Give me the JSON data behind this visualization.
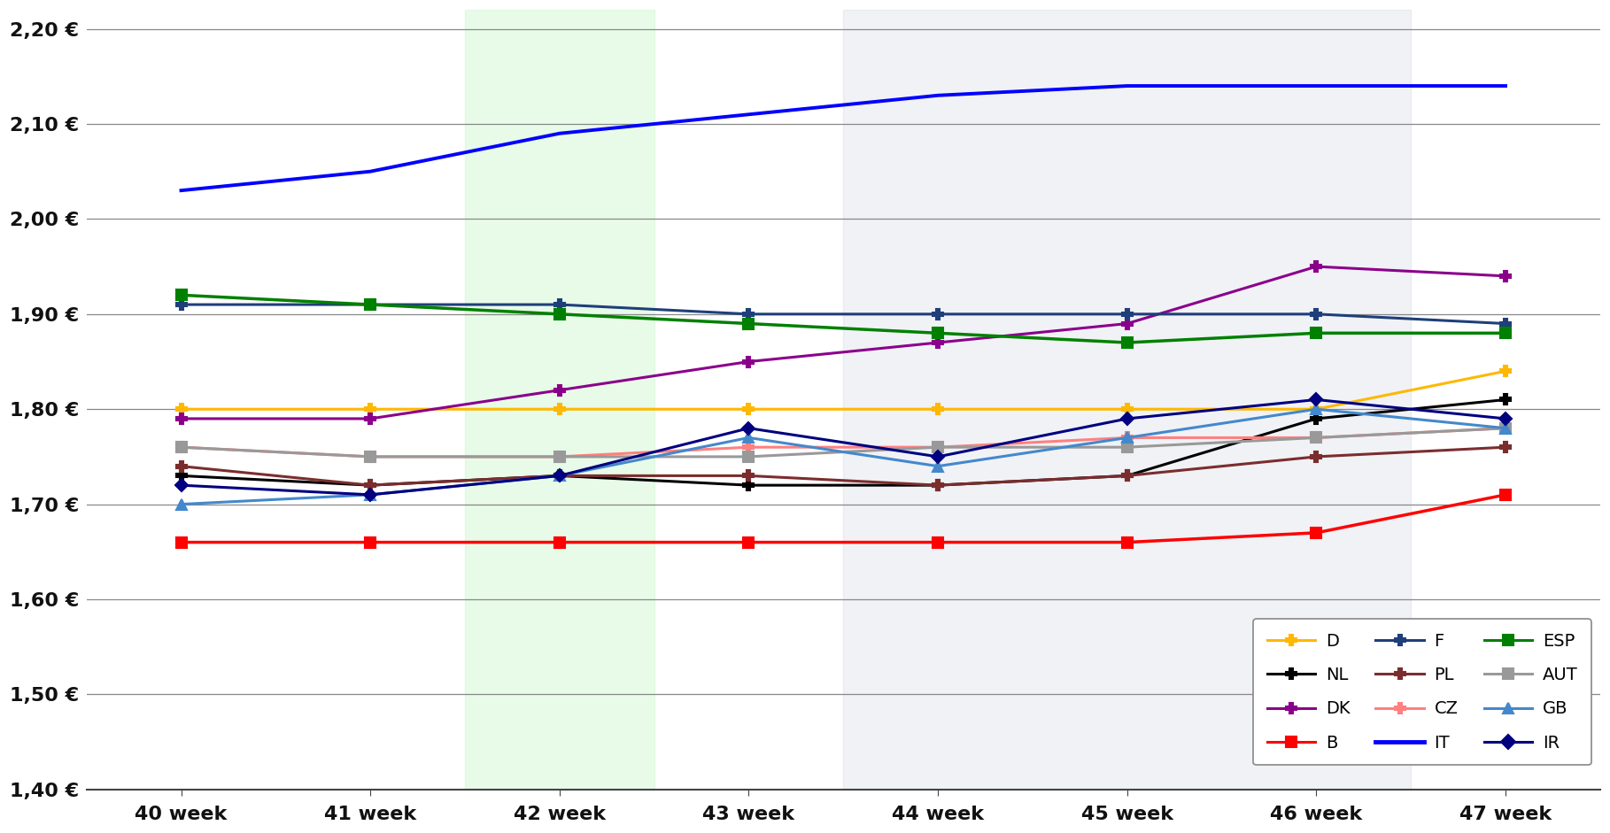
{
  "weeks": [
    40,
    41,
    42,
    43,
    44,
    45,
    46,
    47
  ],
  "week_labels": [
    "40 week",
    "41 week",
    "42 week",
    "43 week",
    "44 week",
    "45 week",
    "46 week",
    "47 week"
  ],
  "series": {
    "D": {
      "values": [
        1.8,
        1.8,
        1.8,
        1.8,
        1.8,
        1.8,
        1.8,
        1.84
      ],
      "color": "#FFB800",
      "marker": "P",
      "linewidth": 2.2,
      "markersize": 8
    },
    "NL": {
      "values": [
        1.73,
        1.72,
        1.73,
        1.72,
        1.72,
        1.73,
        1.79,
        1.81
      ],
      "color": "#000000",
      "marker": "P",
      "linewidth": 2.2,
      "markersize": 8
    },
    "DK": {
      "values": [
        1.79,
        1.79,
        1.82,
        1.85,
        1.87,
        1.89,
        1.95,
        1.94
      ],
      "color": "#8B008B",
      "marker": "P",
      "linewidth": 2.2,
      "markersize": 8
    },
    "B": {
      "values": [
        1.66,
        1.66,
        1.66,
        1.66,
        1.66,
        1.66,
        1.67,
        1.71
      ],
      "color": "#FF0000",
      "marker": "s",
      "linewidth": 2.5,
      "markersize": 9
    },
    "F": {
      "values": [
        1.91,
        1.91,
        1.91,
        1.9,
        1.9,
        1.9,
        1.9,
        1.89
      ],
      "color": "#1F3F7A",
      "marker": "P",
      "linewidth": 2.2,
      "markersize": 8
    },
    "PL": {
      "values": [
        1.74,
        1.72,
        1.73,
        1.73,
        1.72,
        1.73,
        1.75,
        1.76
      ],
      "color": "#7B2D2D",
      "marker": "P",
      "linewidth": 2.2,
      "markersize": 8
    },
    "CZ": {
      "values": [
        1.76,
        1.75,
        1.75,
        1.76,
        1.76,
        1.77,
        1.77,
        1.78
      ],
      "color": "#FF8080",
      "marker": "P",
      "linewidth": 2.2,
      "markersize": 8
    },
    "IT": {
      "values": [
        2.03,
        2.05,
        2.09,
        2.11,
        2.13,
        2.14,
        2.14,
        2.14
      ],
      "color": "#0000FF",
      "marker": null,
      "linewidth": 2.8,
      "markersize": 0
    },
    "ESP": {
      "values": [
        1.92,
        1.91,
        1.9,
        1.89,
        1.88,
        1.87,
        1.88,
        1.88
      ],
      "color": "#008000",
      "marker": "s",
      "linewidth": 2.5,
      "markersize": 8
    },
    "AUT": {
      "values": [
        1.76,
        1.75,
        1.75,
        1.75,
        1.76,
        1.76,
        1.77,
        1.78
      ],
      "color": "#999999",
      "marker": "s",
      "linewidth": 2.2,
      "markersize": 8
    },
    "GB": {
      "values": [
        1.7,
        1.71,
        1.73,
        1.77,
        1.74,
        1.77,
        1.8,
        1.78
      ],
      "color": "#4488CC",
      "marker": "^",
      "linewidth": 2.2,
      "markersize": 8
    },
    "IR": {
      "values": [
        1.72,
        1.71,
        1.73,
        1.78,
        1.75,
        1.79,
        1.81,
        1.79
      ],
      "color": "#000080",
      "marker": "D",
      "linewidth": 2.2,
      "markersize": 7
    }
  },
  "ylim": [
    1.4,
    2.22
  ],
  "yticks": [
    1.4,
    1.5,
    1.6,
    1.7,
    1.8,
    1.9,
    2.0,
    2.1,
    2.2
  ],
  "ytick_labels": [
    "1,40 €",
    "1,50 €",
    "1,60 €",
    "1,70 €",
    "1,80 €",
    "1,90 €",
    "2,00 €",
    "2,10 €",
    "2,20 €"
  ],
  "background_color": "#ffffff",
  "grid_color": "#888888",
  "legend_order": [
    "D",
    "NL",
    "DK",
    "B",
    "F",
    "PL",
    "CZ",
    "IT",
    "ESP",
    "AUT",
    "GB",
    "IR"
  ],
  "green_band": [
    1.5,
    2.5
  ],
  "grey_band": [
    3.5,
    6.5
  ]
}
